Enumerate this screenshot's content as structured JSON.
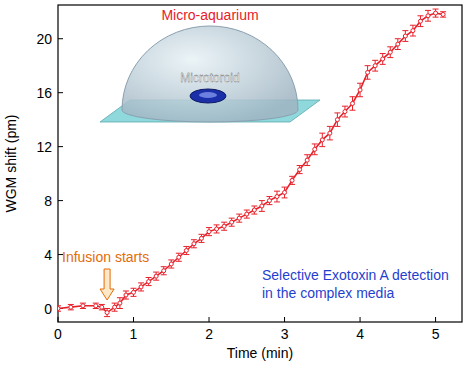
{
  "chart_data": {
    "type": "line",
    "x_label": "Time (min)",
    "y_label": "WGM shift (pm)",
    "xlim": [
      0,
      5.35
    ],
    "ylim": [
      -1,
      22.5
    ],
    "xticks": [
      0,
      1,
      2,
      3,
      4,
      5
    ],
    "yticks": [
      0,
      4,
      8,
      12,
      16,
      20
    ],
    "x": [
      0,
      0.17,
      0.33,
      0.5,
      0.58,
      0.65,
      0.75,
      0.82,
      0.9,
      1.0,
      1.1,
      1.2,
      1.3,
      1.4,
      1.5,
      1.6,
      1.7,
      1.8,
      1.9,
      2.0,
      2.1,
      2.2,
      2.3,
      2.4,
      2.5,
      2.6,
      2.7,
      2.8,
      2.9,
      3.0,
      3.1,
      3.2,
      3.3,
      3.4,
      3.5,
      3.6,
      3.7,
      3.8,
      3.9,
      4.0,
      4.1,
      4.2,
      4.3,
      4.4,
      4.5,
      4.6,
      4.7,
      4.8,
      4.9,
      5.0,
      5.1
    ],
    "series": [
      {
        "color": "#e8202a",
        "marker": "circle",
        "values": [
          0,
          0.1,
          0.2,
          0.2,
          0.1,
          -0.3,
          0.1,
          0.4,
          1.0,
          1.2,
          1.6,
          2.0,
          2.4,
          2.8,
          3.3,
          3.8,
          4.3,
          4.8,
          5.2,
          5.7,
          5.9,
          6.1,
          6.4,
          6.7,
          7.0,
          7.3,
          7.6,
          8.0,
          8.3,
          8.6,
          9.5,
          10.3,
          11.0,
          11.8,
          12.5,
          13.0,
          14.0,
          14.6,
          15.2,
          16.2,
          17.5,
          18.0,
          18.5,
          19.0,
          19.6,
          20.2,
          20.6,
          21.3,
          21.7,
          21.9,
          21.8
        ],
        "errors": [
          0.2,
          0.2,
          0.2,
          0.2,
          0.2,
          0.3,
          0.3,
          0.4,
          0.3,
          0.3,
          0.3,
          0.3,
          0.3,
          0.3,
          0.3,
          0.3,
          0.3,
          0.3,
          0.3,
          0.3,
          0.3,
          0.3,
          0.3,
          0.3,
          0.3,
          0.3,
          0.4,
          0.3,
          0.4,
          0.4,
          0.3,
          0.3,
          0.4,
          0.4,
          0.5,
          0.5,
          0.5,
          0.4,
          0.5,
          0.5,
          0.5,
          0.4,
          0.4,
          0.4,
          0.4,
          0.4,
          0.4,
          0.4,
          0.4,
          0.3,
          0.2
        ]
      }
    ],
    "inset": {
      "title": "Micro-aquarium",
      "label": "Microtoroid"
    },
    "infusion": {
      "text": "Infusion starts",
      "x": 0.65
    },
    "note": [
      "Selective Exotoxin A detection",
      "in the complex media"
    ]
  }
}
